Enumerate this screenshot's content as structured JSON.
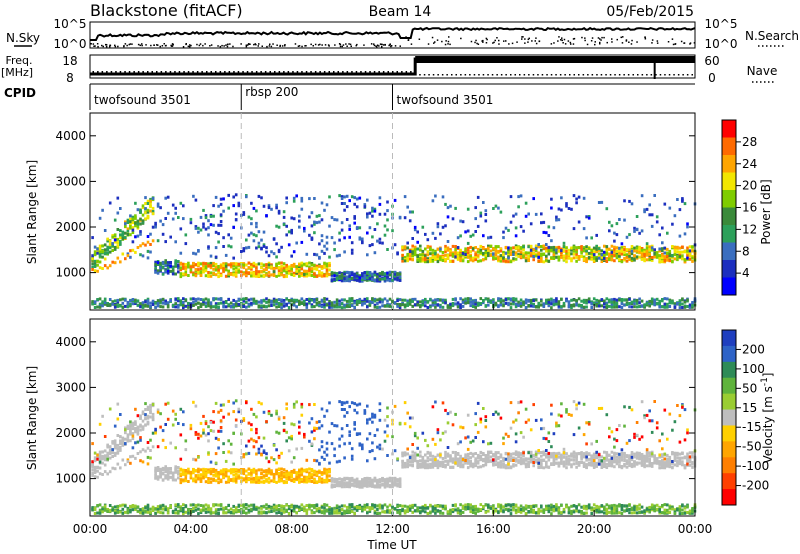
{
  "header": {
    "radar": "Blackstone (fitACF)",
    "beam": "Beam 14",
    "date": "05/Feb/2015"
  },
  "top_panels": {
    "nsky_label": "N.Sky",
    "nsearch_label": "N.Search",
    "nsky_ticks": [
      "10^5",
      "10^0"
    ],
    "nsearch_ticks": [
      "10^5",
      "10^0"
    ],
    "freq_label_1": "Freq.",
    "freq_label_2": "[MHz]",
    "freq_ticks": [
      "18",
      "8"
    ],
    "nave_label": "Nave",
    "nave_ticks": [
      "60",
      "0"
    ],
    "cpid_label": "CPID",
    "cpid_segments": [
      {
        "label": "twofsound 3501",
        "start": 0,
        "end": 6
      },
      {
        "label": "rbsp 200",
        "start": 6,
        "end": 12
      },
      {
        "label": "twofsound 3501",
        "start": 12,
        "end": 24
      }
    ]
  },
  "panels": {
    "ylabel": "Slant Range [km]",
    "xlabel": "Time UT",
    "yticks": [
      "4000",
      "3000",
      "2000",
      "1000"
    ],
    "xticks": [
      "00:00",
      "04:00",
      "08:00",
      "12:00",
      "16:00",
      "20:00",
      "00:00"
    ]
  },
  "power_colorbar": {
    "label": "Power [dB]",
    "ticks": [
      "28",
      "24",
      "20",
      "16",
      "12",
      "8",
      "4"
    ],
    "colors": [
      "#ff0000",
      "#ff6a00",
      "#ffa500",
      "#f2e600",
      "#7fcc00",
      "#3a8a3a",
      "#2ca05a",
      "#3a6ebf",
      "#1c2fbf",
      "#0000ff"
    ]
  },
  "velocity_colorbar": {
    "label": "Velocity [m s-1]",
    "ticks": [
      "200",
      "100",
      "50",
      "15",
      "-15",
      "-50",
      "-100",
      "-200"
    ],
    "colors": [
      "#1f3fbf",
      "#2e63c7",
      "#2e8b57",
      "#5fb33c",
      "#9acd32",
      "#bebebe",
      "#ffd000",
      "#ffa500",
      "#ff7f00",
      "#ff4000",
      "#ff0000"
    ]
  },
  "chart_data": [
    {
      "type": "heatmap",
      "title": "Power",
      "xlabel": "Time UT",
      "ylabel": "Slant Range [km]",
      "xlim": [
        "00:00",
        "24:00"
      ],
      "ylim": [
        180,
        4500
      ],
      "zlabel": "Power [dB]",
      "zlim": [
        0,
        30
      ],
      "features": [
        {
          "name": "low-range echo band",
          "time_range": [
            "00:00",
            "24:00"
          ],
          "range_km": [
            200,
            400
          ],
          "power_db": 10
        },
        {
          "name": "early diagonal band",
          "time_range": [
            "00:00",
            "02:30"
          ],
          "range_km": [
            1000,
            2700
          ],
          "power_db": 18
        },
        {
          "name": "main band",
          "time_range": [
            "03:30",
            "09:30"
          ],
          "range_km": [
            800,
            1300
          ],
          "power_db": 22
        },
        {
          "name": "post-noon band",
          "time_range": [
            "12:30",
            "24:00"
          ],
          "range_km": [
            1100,
            1700
          ],
          "power_db": 22
        }
      ]
    },
    {
      "type": "heatmap",
      "title": "Velocity",
      "xlabel": "Time UT",
      "ylabel": "Slant Range [km]",
      "xlim": [
        "00:00",
        "24:00"
      ],
      "ylim": [
        180,
        4500
      ],
      "zlabel": "Velocity [m s-1]",
      "zlim": [
        -200,
        200
      ],
      "features": [
        {
          "name": "ground scatter band",
          "time_range": [
            "00:00",
            "24:00"
          ],
          "range_km": [
            900,
            1700
          ],
          "velocity": 0
        },
        {
          "name": "negative velocity region",
          "time_range": [
            "03:30",
            "09:30"
          ],
          "range_km": [
            800,
            2200
          ],
          "velocity": -60
        },
        {
          "name": "positive velocity patch",
          "time_range": [
            "09:00",
            "11:30"
          ],
          "range_km": [
            1600,
            2300
          ],
          "velocity": 100
        }
      ]
    }
  ]
}
